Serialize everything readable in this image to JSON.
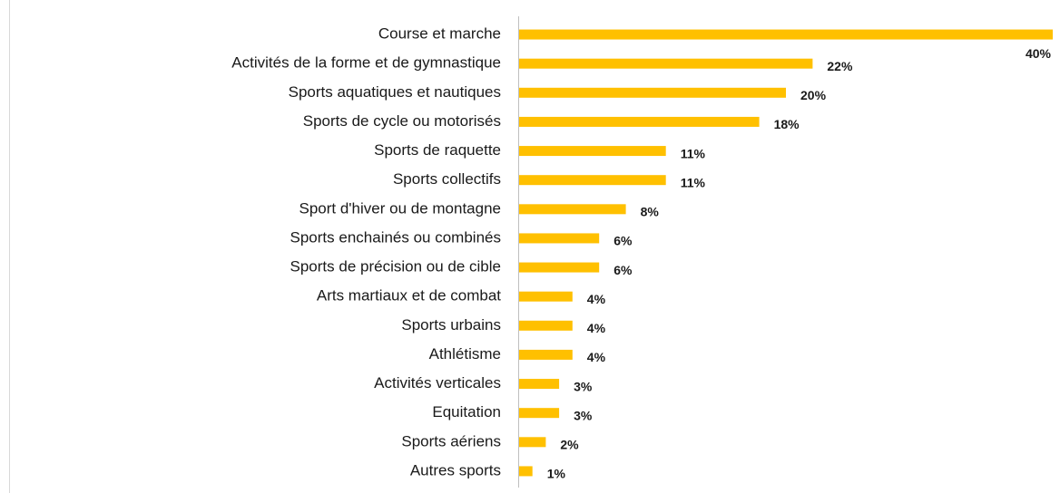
{
  "chart_data": {
    "type": "barh",
    "categories": [
      "Course et marche",
      "Activités de la forme et de gymnastique",
      "Sports aquatiques et nautiques",
      "Sports de cycle ou motorisés",
      "Sports de raquette",
      "Sports collectifs",
      "Sport d'hiver ou de montagne",
      "Sports enchainés ou combinés",
      "Sports de précision ou de cible",
      "Arts martiaux et de combat",
      "Sports urbains",
      "Athlétisme",
      "Activités verticales",
      "Equitation",
      "Sports aériens",
      "Autres sports"
    ],
    "values": [
      40,
      22,
      20,
      18,
      11,
      11,
      8,
      6,
      6,
      4,
      4,
      4,
      3,
      3,
      2,
      1
    ],
    "value_labels": [
      "40%",
      "22%",
      "20%",
      "18%",
      "11%",
      "11%",
      "8%",
      "6%",
      "6%",
      "4%",
      "4%",
      "4%",
      "3%",
      "3%",
      "2%",
      "1%"
    ],
    "color": "#ffc000",
    "xlim": [
      0,
      40
    ]
  }
}
